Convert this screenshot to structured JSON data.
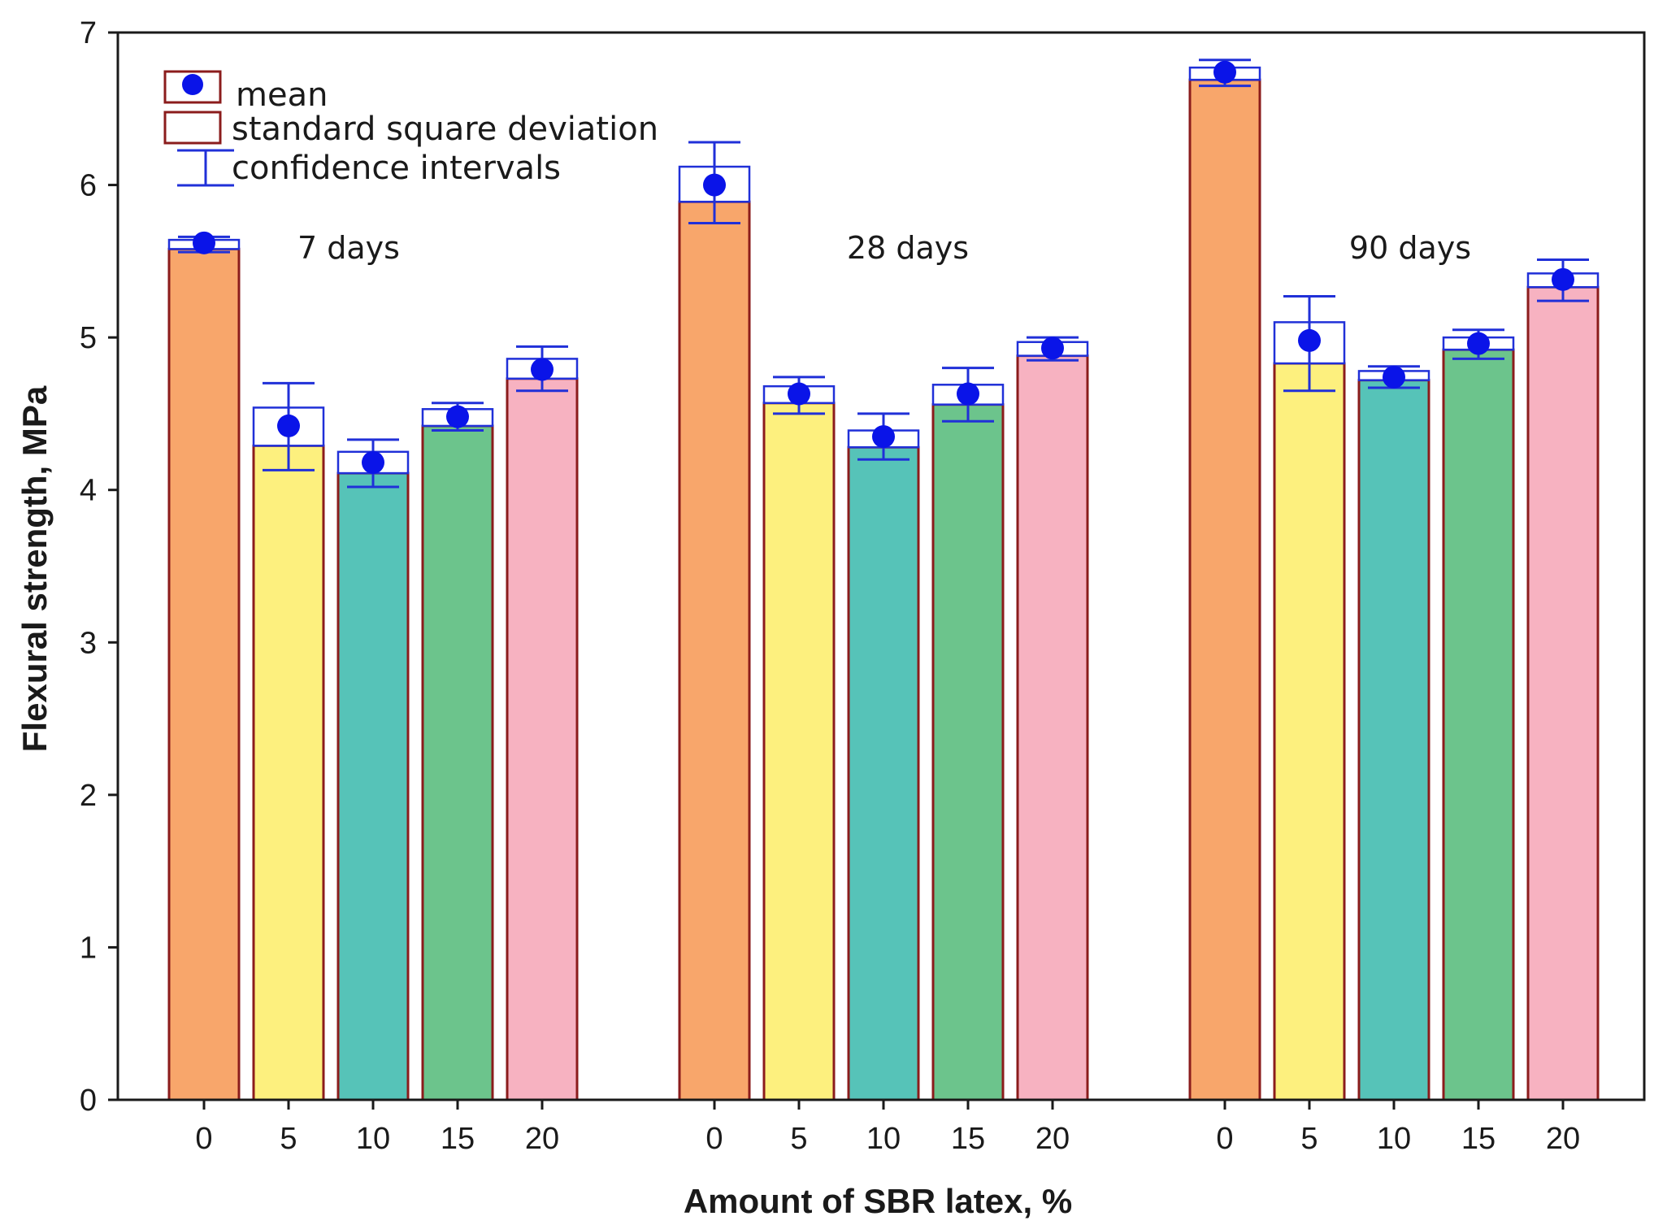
{
  "chart_data": {
    "type": "bar",
    "title": "",
    "xlabel": "Amount of SBR latex, %",
    "ylabel": "Flexural strength, MPa",
    "ylim": [
      0,
      7
    ],
    "yticks": [
      "0",
      "1",
      "2",
      "3",
      "4",
      "5",
      "6",
      "7"
    ],
    "grid": false,
    "legend": {
      "position": "top-left",
      "entries": [
        "mean",
        "standard square deviation",
        "confidence intervals"
      ]
    },
    "groups": [
      {
        "label": "7 days",
        "bars": [
          {
            "category": "0",
            "mean": 5.62,
            "sd_low": 5.58,
            "sd_high": 5.64,
            "ci_low": 5.56,
            "ci_high": 5.66,
            "color": "#f8a66b"
          },
          {
            "category": "5",
            "mean": 4.42,
            "sd_low": 4.29,
            "sd_high": 4.54,
            "ci_low": 4.13,
            "ci_high": 4.7,
            "color": "#fdf07e"
          },
          {
            "category": "10",
            "mean": 4.18,
            "sd_low": 4.11,
            "sd_high": 4.25,
            "ci_low": 4.02,
            "ci_high": 4.33,
            "color": "#56c3b8"
          },
          {
            "category": "15",
            "mean": 4.48,
            "sd_low": 4.42,
            "sd_high": 4.53,
            "ci_low": 4.39,
            "ci_high": 4.57,
            "color": "#6cc48c"
          },
          {
            "category": "20",
            "mean": 4.79,
            "sd_low": 4.73,
            "sd_high": 4.86,
            "ci_low": 4.65,
            "ci_high": 4.94,
            "color": "#f7b2c1"
          }
        ]
      },
      {
        "label": "28 days",
        "bars": [
          {
            "category": "0",
            "mean": 6.0,
            "sd_low": 5.89,
            "sd_high": 6.12,
            "ci_low": 5.75,
            "ci_high": 6.28,
            "color": "#f8a66b"
          },
          {
            "category": "5",
            "mean": 4.63,
            "sd_low": 4.57,
            "sd_high": 4.68,
            "ci_low": 4.5,
            "ci_high": 4.74,
            "color": "#fdf07e"
          },
          {
            "category": "10",
            "mean": 4.35,
            "sd_low": 4.28,
            "sd_high": 4.39,
            "ci_low": 4.2,
            "ci_high": 4.5,
            "color": "#56c3b8"
          },
          {
            "category": "15",
            "mean": 4.63,
            "sd_low": 4.56,
            "sd_high": 4.69,
            "ci_low": 4.45,
            "ci_high": 4.8,
            "color": "#6cc48c"
          },
          {
            "category": "20",
            "mean": 4.93,
            "sd_low": 4.88,
            "sd_high": 4.97,
            "ci_low": 4.85,
            "ci_high": 5.0,
            "color": "#f7b2c1"
          }
        ]
      },
      {
        "label": "90 days",
        "bars": [
          {
            "category": "0",
            "mean": 6.74,
            "sd_low": 6.69,
            "sd_high": 6.77,
            "ci_low": 6.65,
            "ci_high": 6.82,
            "color": "#f8a66b"
          },
          {
            "category": "5",
            "mean": 4.98,
            "sd_low": 4.83,
            "sd_high": 5.1,
            "ci_low": 4.65,
            "ci_high": 5.27,
            "color": "#fdf07e"
          },
          {
            "category": "10",
            "mean": 4.74,
            "sd_low": 4.72,
            "sd_high": 4.78,
            "ci_low": 4.67,
            "ci_high": 4.81,
            "color": "#56c3b8"
          },
          {
            "category": "15",
            "mean": 4.96,
            "sd_low": 4.92,
            "sd_high": 5.0,
            "ci_low": 4.86,
            "ci_high": 5.05,
            "color": "#6cc48c"
          },
          {
            "category": "20",
            "mean": 5.38,
            "sd_low": 5.33,
            "sd_high": 5.42,
            "ci_low": 5.24,
            "ci_high": 5.51,
            "color": "#f7b2c1"
          }
        ]
      }
    ],
    "colors": {
      "bar_border": "#8b1c1c",
      "marker": "#0a14e8",
      "error": "#2030d8",
      "axis": "#1a1a1a"
    }
  }
}
